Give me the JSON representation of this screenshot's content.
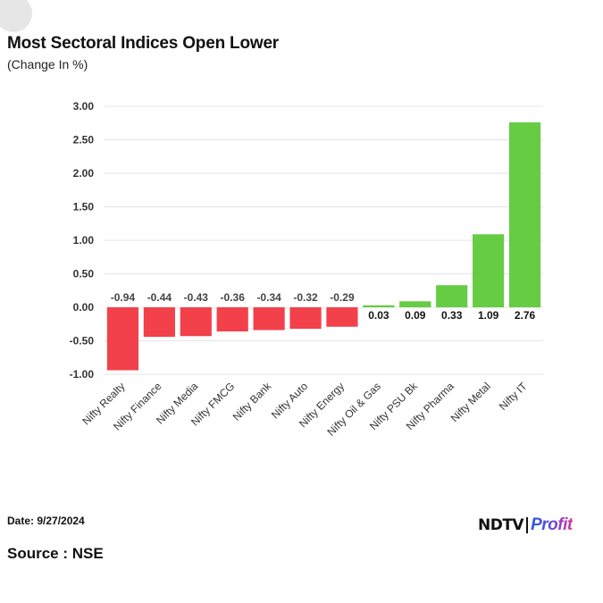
{
  "chart_data": {
    "type": "bar",
    "title": "Most Sectoral Indices Open Lower",
    "subtitle": "(Change In %)",
    "categories": [
      "Nifty Realty",
      "Nifty Finance",
      "Nifty Media",
      "Nifty FMCG",
      "Nifty Bank",
      "Nifty Auto",
      "Nifty Energy",
      "Nifty Oil & Gas",
      "Nifty PSU Bk",
      "Nifty Pharma",
      "Nifty Metal",
      "Nifty IT"
    ],
    "values": [
      -0.94,
      -0.44,
      -0.43,
      -0.36,
      -0.34,
      -0.32,
      -0.29,
      0.03,
      0.09,
      0.33,
      1.09,
      2.76
    ],
    "data_labels": [
      "-0.94",
      "-0.44",
      "-0.43",
      "-0.36",
      "-0.34",
      "-0.32",
      "-0.29",
      "0.03",
      "0.09",
      "0.33",
      "1.09",
      "2.76"
    ],
    "ylim": [
      -1.0,
      3.0
    ],
    "yticks": [
      3.0,
      2.5,
      2.0,
      1.5,
      1.0,
      0.5,
      0.0,
      -0.5,
      -1.0
    ],
    "ytick_labels": [
      "3.00",
      "2.50",
      "2.00",
      "1.50",
      "1.00",
      "0.50",
      "0.00",
      "-0.50",
      "-1.00"
    ],
    "grid": true,
    "colors": {
      "positive": "#66cc44",
      "negative": "#f2414b"
    }
  },
  "footer": {
    "date": "Date: 9/27/2024",
    "source": "Source : NSE",
    "logo_ndtv": "NDTV",
    "logo_profit": "Profit"
  }
}
